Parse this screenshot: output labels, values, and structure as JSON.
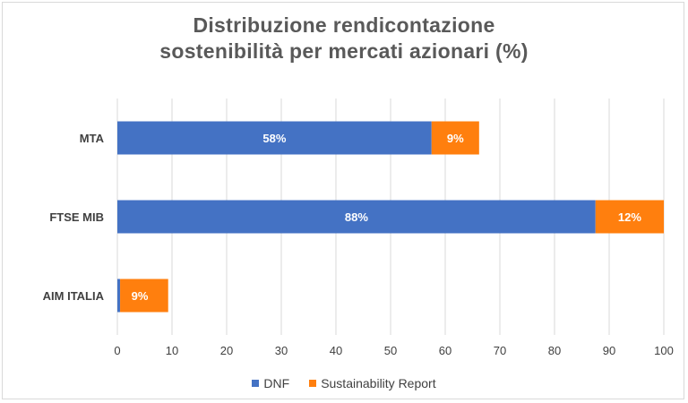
{
  "chart_data": {
    "type": "bar",
    "orientation": "horizontal",
    "stacked": true,
    "title_lines": [
      "Distribuzione rendicontazione",
      "sostenibilità per mercati azionari (%)"
    ],
    "categories": [
      "MTA",
      "FTSE MIB",
      "AIM ITALIA"
    ],
    "series": [
      {
        "name": "DNF",
        "color": "#4472c4",
        "values": [
          57.5,
          87.5,
          0.5
        ],
        "labels": [
          "58%",
          "88%",
          "%"
        ]
      },
      {
        "name": "Sustainability Report",
        "color": "#ff7f0e",
        "values": [
          8.7,
          12.5,
          8.8
        ],
        "labels": [
          "9%",
          "12%",
          "9%"
        ]
      }
    ],
    "xlim": [
      0,
      100
    ],
    "xticks": [
      "0",
      "10",
      "20",
      "30",
      "40",
      "50",
      "60",
      "70",
      "80",
      "90",
      "100"
    ],
    "grid": true,
    "legend": "bottom"
  }
}
